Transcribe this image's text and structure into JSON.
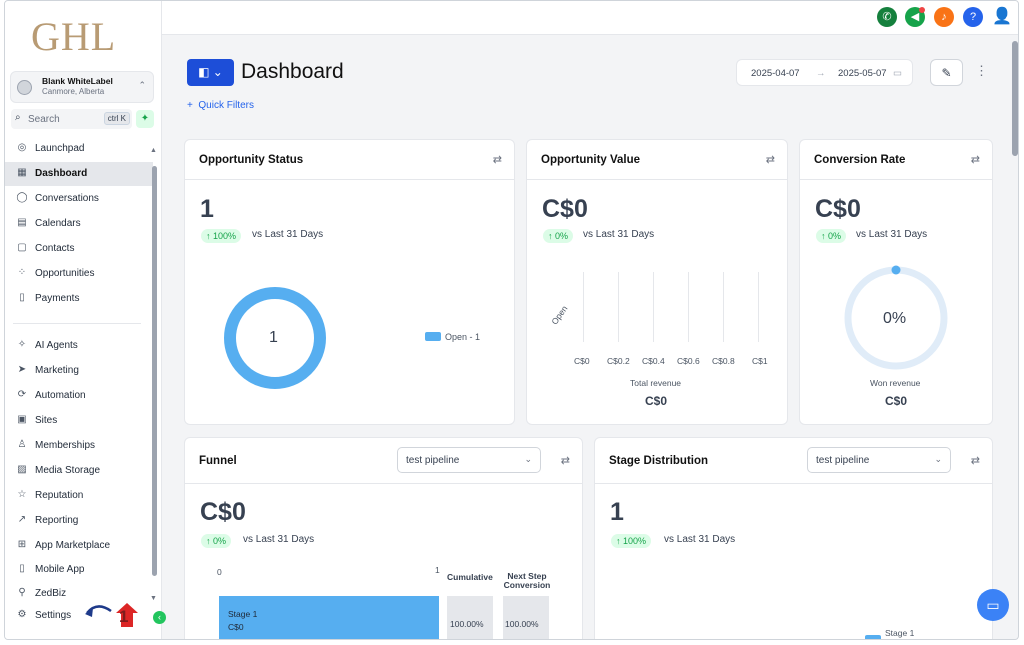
{
  "logo": "GHL",
  "account": {
    "name": "Blank WhiteLabel",
    "location": "Canmore, Alberta"
  },
  "search": {
    "label": "Search",
    "shortcut": "ctrl K"
  },
  "sidebar": {
    "items": [
      {
        "label": "Launchpad",
        "icon": "rocket-icon"
      },
      {
        "label": "Dashboard",
        "icon": "grid-icon"
      },
      {
        "label": "Conversations",
        "icon": "chat-bubble-icon"
      },
      {
        "label": "Calendars",
        "icon": "calendar-icon"
      },
      {
        "label": "Contacts",
        "icon": "contacts-icon"
      },
      {
        "label": "Opportunities",
        "icon": "opportunities-icon"
      },
      {
        "label": "Payments",
        "icon": "payments-icon"
      },
      {
        "label": "AI Agents",
        "icon": "sparkle-icon"
      },
      {
        "label": "Marketing",
        "icon": "send-icon"
      },
      {
        "label": "Automation",
        "icon": "automation-icon"
      },
      {
        "label": "Sites",
        "icon": "globe-icon"
      },
      {
        "label": "Memberships",
        "icon": "memberships-icon"
      },
      {
        "label": "Media Storage",
        "icon": "image-icon"
      },
      {
        "label": "Reputation",
        "icon": "star-icon"
      },
      {
        "label": "Reporting",
        "icon": "trend-icon"
      },
      {
        "label": "App Marketplace",
        "icon": "apps-icon"
      },
      {
        "label": "Mobile App",
        "icon": "phone-icon"
      },
      {
        "label": "ZedBiz",
        "icon": "zedbiz-icon"
      },
      {
        "label": "Settings",
        "icon": "gear-icon"
      }
    ],
    "active": "Dashboard"
  },
  "annotation": {
    "number": "1"
  },
  "header": {
    "title": "Dashboard",
    "quick_filters": "Quick Filters",
    "date_start": "2025-04-07",
    "date_end": "2025-05-07"
  },
  "colors": {
    "primary": "#1d4ed8",
    "accent_green": "#16a34a",
    "chart_blue": "#56aef0",
    "logo": "#b89b74"
  },
  "cards": {
    "opportunity_status": {
      "title": "Opportunity Status",
      "value": "1",
      "delta": "100%",
      "vs": "vs Last 31 Days",
      "donut_center": "1",
      "legend": "Open - 1"
    },
    "opportunity_value": {
      "title": "Opportunity Value",
      "value": "C$0",
      "delta": "0%",
      "vs": "vs Last 31 Days",
      "y_label": "Open",
      "x_ticks": [
        "C$0",
        "C$0.2",
        "C$0.4",
        "C$0.6",
        "C$0.8",
        "C$1"
      ],
      "x_title": "Total revenue",
      "total": "C$0"
    },
    "conversion_rate": {
      "title": "Conversion Rate",
      "value": "C$0",
      "delta": "0%",
      "vs": "vs Last 31 Days",
      "gauge": "0%",
      "label": "Won revenue",
      "total": "C$0"
    },
    "funnel": {
      "title": "Funnel",
      "pipeline": "test pipeline",
      "value": "C$0",
      "delta": "0%",
      "vs": "vs Last 31 Days",
      "axis_start": "0",
      "axis_end": "1",
      "col_cumulative": "Cumulative",
      "col_next": "Next Step Conversion",
      "stage_name": "Stage 1",
      "stage_value": "C$0",
      "cumulative": "100.00%",
      "next": "100.00%"
    },
    "stage_distribution": {
      "title": "Stage Distribution",
      "pipeline": "test pipeline",
      "value": "1",
      "delta": "100%",
      "vs": "vs Last 31 Days",
      "legend": "Stage 1"
    }
  },
  "chart_data": [
    {
      "type": "pie",
      "title": "Opportunity Status",
      "categories": [
        "Open"
      ],
      "values": [
        1
      ]
    },
    {
      "type": "bar",
      "title": "Opportunity Value",
      "categories": [
        "Open"
      ],
      "values": [
        0
      ],
      "xlabel": "Total revenue",
      "xlim": [
        0,
        1
      ]
    },
    {
      "type": "bar",
      "title": "Funnel",
      "categories": [
        "Stage 1"
      ],
      "values": [
        1
      ],
      "xlim": [
        0,
        1
      ]
    },
    {
      "type": "pie",
      "title": "Stage Distribution",
      "categories": [
        "Stage 1"
      ],
      "values": [
        1
      ]
    }
  ]
}
